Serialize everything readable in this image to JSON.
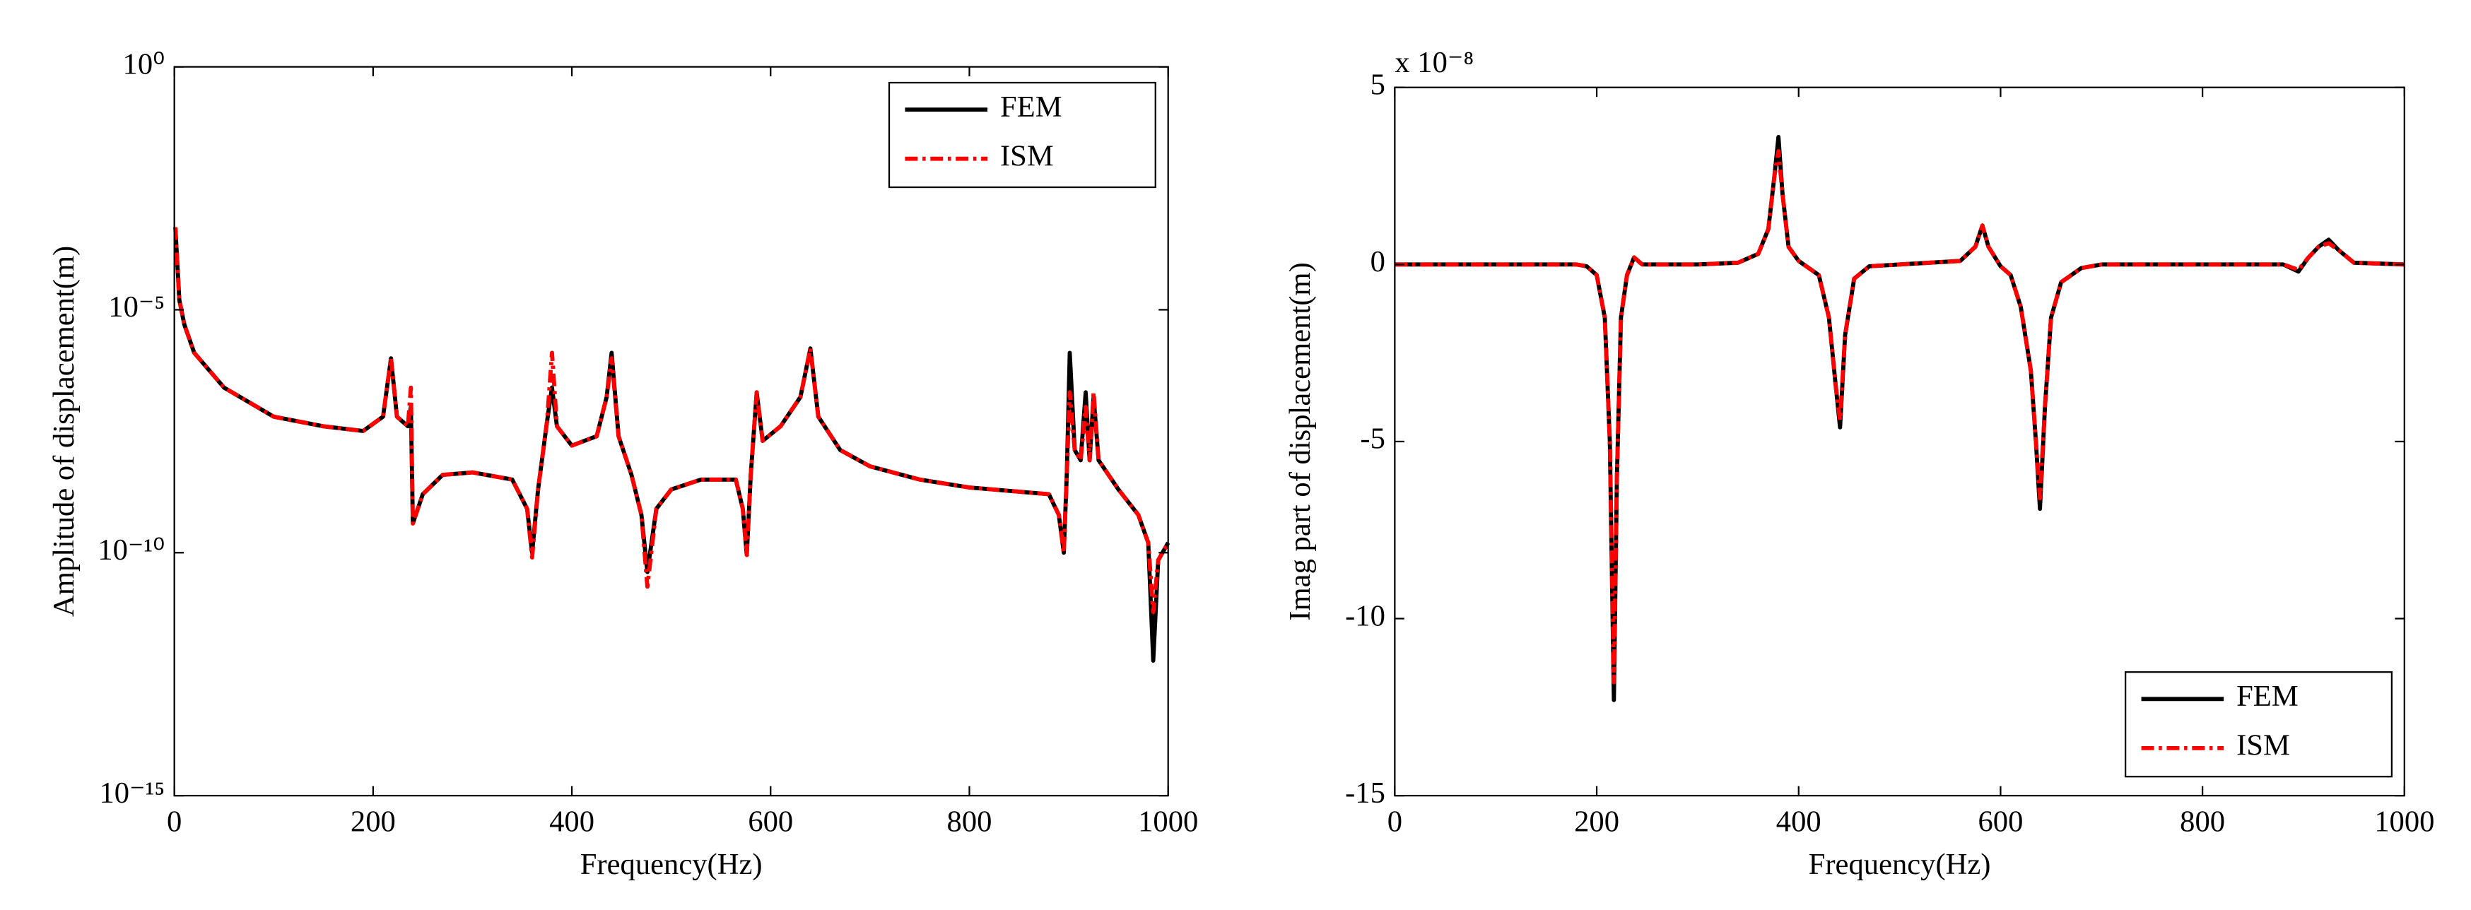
{
  "chart_data": [
    {
      "type": "line",
      "yscale": "log",
      "xlabel": "Frequency(Hz)",
      "ylabel": "Amplitude of displacement(m)",
      "xlim": [
        0,
        1000
      ],
      "xticks": [
        0,
        200,
        400,
        600,
        800,
        1000
      ],
      "ylim": [
        1e-15,
        1
      ],
      "yticks": [
        {
          "value": 1e-15,
          "label": "10⁻¹⁵"
        },
        {
          "value": 1e-10,
          "label": "10⁻¹⁰"
        },
        {
          "value": 1e-05,
          "label": "10⁻⁵"
        },
        {
          "value": 1,
          "label": "10⁰"
        }
      ],
      "grid": false,
      "legend": "upper right",
      "x": [
        1,
        5,
        10,
        20,
        50,
        100,
        150,
        190,
        210,
        218,
        224,
        235,
        238,
        240,
        250,
        270,
        300,
        340,
        355,
        360,
        366,
        375,
        380,
        385,
        400,
        425,
        435,
        440,
        447,
        460,
        470,
        476,
        485,
        500,
        530,
        565,
        572,
        576,
        580,
        586,
        592,
        610,
        630,
        640,
        648,
        670,
        700,
        750,
        800,
        880,
        890,
        895,
        898,
        901,
        906,
        912,
        917,
        921,
        925,
        930,
        950,
        970,
        980,
        985,
        990,
        1000
      ],
      "series": [
        {
          "name": "FEM",
          "color": "#000000",
          "values": [
            0.0005,
            1.6e-05,
            5e-06,
            1.3e-06,
            2.5e-07,
            6.3e-08,
            4e-08,
            3.2e-08,
            6.3e-08,
            1e-06,
            6.3e-08,
            4e-08,
            1e-07,
            4e-10,
            1.6e-09,
            4e-09,
            4.5e-09,
            3.2e-09,
            8e-10,
            1e-10,
            2e-09,
            5e-08,
            2.5e-07,
            4e-08,
            1.6e-08,
            2.5e-08,
            1.6e-07,
            1.3e-06,
            2.5e-08,
            4e-09,
            6e-10,
            4e-11,
            8e-10,
            2e-09,
            3.2e-09,
            3.2e-09,
            8e-10,
            9e-11,
            4e-09,
            2e-07,
            2e-08,
            4e-08,
            1.6e-07,
            1.6e-06,
            6.3e-08,
            1.3e-08,
            6e-09,
            3.2e-09,
            2.2e-09,
            1.6e-09,
            6e-10,
            1e-10,
            4e-09,
            1.3e-06,
            1.3e-08,
            8e-09,
            2e-07,
            8e-09,
            1.6e-07,
            8e-09,
            2e-09,
            6e-10,
            1.6e-10,
            6e-13,
            7e-11,
            1.6e-10
          ]
        },
        {
          "name": "ISM",
          "color": "#ff0000",
          "values": [
            0.0005,
            1.6e-05,
            5e-06,
            1.3e-06,
            2.5e-07,
            6.3e-08,
            4e-08,
            3.2e-08,
            6.3e-08,
            1e-06,
            6.3e-08,
            4e-08,
            2.5e-07,
            4e-10,
            1.6e-09,
            4e-09,
            4.5e-09,
            3.2e-09,
            8e-10,
            8e-11,
            2e-09,
            5e-08,
            1.3e-06,
            4e-08,
            1.6e-08,
            2.5e-08,
            1.6e-07,
            1e-06,
            2.5e-08,
            4e-09,
            6e-10,
            2e-11,
            8e-10,
            2e-09,
            3.2e-09,
            3.2e-09,
            8e-10,
            9e-11,
            4e-09,
            2e-07,
            2e-08,
            4e-08,
            1.6e-07,
            1.6e-06,
            6.3e-08,
            1.3e-08,
            6e-09,
            3.2e-09,
            2.2e-09,
            1.6e-09,
            6e-10,
            1e-10,
            4e-09,
            2e-07,
            1.3e-08,
            8e-09,
            1e-07,
            8e-09,
            2e-07,
            8e-09,
            2e-09,
            6e-10,
            1.6e-10,
            6e-12,
            7e-11,
            1.6e-10
          ]
        }
      ]
    },
    {
      "type": "line",
      "yscale": "linear",
      "xlabel": "Frequency(Hz)",
      "ylabel": "Imag part of displacement(m)",
      "annotation": "x 10⁻⁸",
      "xlim": [
        0,
        1000
      ],
      "xticks": [
        0,
        200,
        400,
        600,
        800,
        1000
      ],
      "ylim": [
        -15,
        5
      ],
      "yticks": [
        -15,
        -10,
        -5,
        0,
        5
      ],
      "grid": false,
      "legend": "lower right",
      "x": [
        0,
        180,
        190,
        200,
        208,
        213,
        217,
        220,
        224,
        230,
        237,
        245,
        300,
        340,
        360,
        370,
        376,
        380,
        384,
        390,
        400,
        420,
        430,
        437,
        441,
        446,
        455,
        470,
        500,
        560,
        575,
        582,
        588,
        600,
        610,
        620,
        630,
        635,
        639,
        644,
        650,
        660,
        680,
        700,
        880,
        895,
        905,
        915,
        925,
        935,
        950,
        1000
      ],
      "series": [
        {
          "name": "FEM",
          "color": "#000000",
          "values": [
            0,
            0,
            -0.05,
            -0.3,
            -1.5,
            -5,
            -12.3,
            -6,
            -1.5,
            -0.3,
            0.2,
            0,
            0,
            0.05,
            0.3,
            1,
            2.5,
            3.6,
            2,
            0.5,
            0.1,
            -0.3,
            -1.5,
            -3.5,
            -4.6,
            -2,
            -0.4,
            -0.05,
            0,
            0.1,
            0.5,
            1.1,
            0.5,
            -0.05,
            -0.3,
            -1.2,
            -3,
            -5,
            -6.9,
            -4,
            -1.5,
            -0.5,
            -0.1,
            0,
            0,
            -0.2,
            0.2,
            0.5,
            0.7,
            0.4,
            0.05,
            0
          ]
        },
        {
          "name": "ISM",
          "color": "#ff0000",
          "values": [
            0,
            0,
            -0.05,
            -0.3,
            -1.5,
            -5,
            -11.8,
            -6,
            -1.5,
            -0.3,
            0.2,
            0,
            0,
            0.05,
            0.3,
            1,
            2.5,
            3.2,
            2,
            0.5,
            0.1,
            -0.3,
            -1.5,
            -3.5,
            -4.4,
            -2,
            -0.4,
            -0.05,
            0,
            0.1,
            0.5,
            1.1,
            0.5,
            -0.05,
            -0.3,
            -1.2,
            -3,
            -5,
            -6.6,
            -4,
            -1.5,
            -0.5,
            -0.1,
            0,
            0,
            -0.15,
            0.2,
            0.5,
            0.6,
            0.4,
            0.05,
            0
          ]
        }
      ]
    }
  ]
}
